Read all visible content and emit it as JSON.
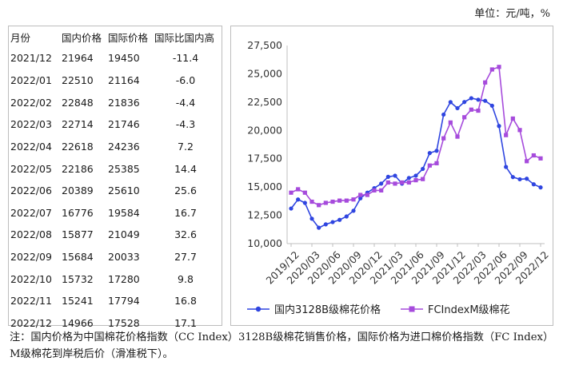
{
  "unit": "单位：元/吨，%",
  "table": {
    "headers": [
      "月份",
      "国内价格",
      "国际价格",
      "国际比国内高"
    ],
    "rows": [
      [
        "2021/12",
        "21964",
        "19450",
        "-11.4"
      ],
      [
        "2022/01",
        "22510",
        "21164",
        "-6.0"
      ],
      [
        "2022/02",
        "22848",
        "21836",
        "-4.4"
      ],
      [
        "2022/03",
        "22714",
        "21746",
        "-4.3"
      ],
      [
        "2022/04",
        "22618",
        "24236",
        "7.2"
      ],
      [
        "2022/05",
        "22186",
        "25385",
        "14.4"
      ],
      [
        "2022/06",
        "20389",
        "25610",
        "25.6"
      ],
      [
        "2022/07",
        "16776",
        "19584",
        "16.7"
      ],
      [
        "2022/08",
        "15877",
        "21049",
        "32.6"
      ],
      [
        "2022/09",
        "15684",
        "20033",
        "27.7"
      ],
      [
        "2022/10",
        "15732",
        "17280",
        "9.8"
      ],
      [
        "2022/11",
        "15241",
        "17794",
        "16.8"
      ],
      [
        "2022/12",
        "14966",
        "17528",
        "17.1"
      ]
    ]
  },
  "chart_data": {
    "type": "line",
    "title": "",
    "xlabel": "",
    "ylabel": "",
    "ylim": [
      10000,
      27500
    ],
    "yticks": [
      10000,
      12500,
      15000,
      17500,
      20000,
      22500,
      25000,
      27500
    ],
    "ytick_labels": [
      "10,000",
      "12,500",
      "15,000",
      "17,500",
      "20,000",
      "22,500",
      "25,000",
      "27,500"
    ],
    "xtick_labels": [
      "2019/12",
      "2020/03",
      "2020/06",
      "2020/09",
      "2020/12",
      "2021/03",
      "2021/06",
      "2021/09",
      "2021/12",
      "2022/03",
      "2022/06",
      "2022/09",
      "2022/12"
    ],
    "xtick_every": 3,
    "categories": [
      "2019/12",
      "2020/01",
      "2020/02",
      "2020/03",
      "2020/04",
      "2020/05",
      "2020/06",
      "2020/07",
      "2020/08",
      "2020/09",
      "2020/10",
      "2020/11",
      "2020/12",
      "2021/01",
      "2021/02",
      "2021/03",
      "2021/04",
      "2021/05",
      "2021/06",
      "2021/07",
      "2021/08",
      "2021/09",
      "2021/10",
      "2021/11",
      "2021/12",
      "2022/01",
      "2022/02",
      "2022/03",
      "2022/04",
      "2022/05",
      "2022/06",
      "2022/07",
      "2022/08",
      "2022/09",
      "2022/10",
      "2022/11",
      "2022/12"
    ],
    "series": [
      {
        "name": "国内3128B级棉花价格",
        "color": "#2f45e0",
        "marker": "circle",
        "values": [
          13100,
          13900,
          13600,
          12200,
          11400,
          11700,
          11900,
          12100,
          12400,
          12900,
          14000,
          14500,
          14900,
          15300,
          15900,
          16000,
          15300,
          15800,
          16000,
          16600,
          18000,
          18200,
          21400,
          22500,
          21964,
          22510,
          22848,
          22714,
          22618,
          22186,
          20389,
          16776,
          15877,
          15684,
          15732,
          15241,
          14966
        ]
      },
      {
        "name": "FCIndexM级棉花",
        "color": "#a64bdc",
        "marker": "square",
        "values": [
          14500,
          14800,
          14500,
          13700,
          13400,
          13600,
          13700,
          13800,
          13800,
          13900,
          14300,
          14300,
          14700,
          14700,
          15400,
          15300,
          15400,
          15400,
          15600,
          15700,
          16900,
          17100,
          19300,
          20700,
          19450,
          21164,
          21836,
          21746,
          24236,
          25385,
          25610,
          19584,
          21049,
          20033,
          17280,
          17794,
          17528
        ]
      }
    ],
    "legend_position": "bottom"
  },
  "note": "注：国内价格为中国棉花价格指数（CC Index）3128B级棉花销售价格，国际价格为进口棉价格指数（FC Index）M级棉花到岸税后价（滑准税下）。"
}
